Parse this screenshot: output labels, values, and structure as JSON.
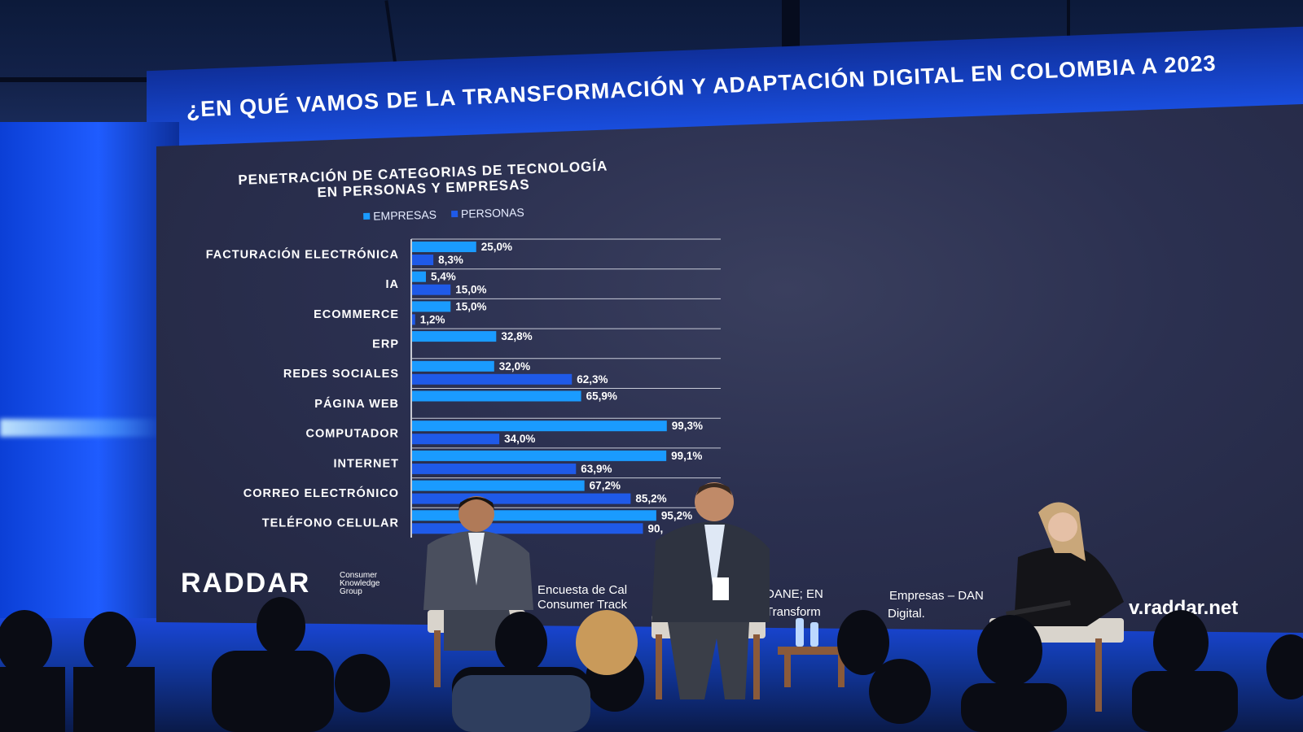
{
  "slide": {
    "title": "¿EN QUÉ VAMOS DE LA TRANSFORMACIÓN Y  ADAPTACIÓN DIGITAL EN COLOMBIA A 2023",
    "subtitle_line1": "PENETRACIÓN DE CATEGORIAS DE TECNOLOGÍA",
    "subtitle_line2": "EN PERSONAS Y EMPRESAS",
    "logo": "RADDAR",
    "logo_sub1": "Consumer",
    "logo_sub2": "Knowledge",
    "logo_sub3": "Group",
    "source_line1a": "Encuesta de Cal",
    "source_line1b": "DANE; EN",
    "source_line1c": "Empresas – DAN",
    "source_line2a": "Consumer Track",
    "source_line2b": "Transform",
    "source_line2c": "Digital.",
    "website": "v.raddar.net"
  },
  "colors": {
    "empresas": "#1a9bff",
    "personas": "#1f5ae8",
    "screen_bg": "#2b3050",
    "stage_blue": "#1f5cff"
  },
  "chart_data": {
    "type": "bar",
    "orientation": "horizontal",
    "categories": [
      "FACTURACIÓN ELECTRÓNICA",
      "IA",
      "ECOMMERCE",
      "ERP",
      "REDES SOCIALES",
      "PÁGINA WEB",
      "COMPUTADOR",
      "INTERNET",
      "CORREO ELECTRÓNICO",
      "TELÉFONO CELULAR"
    ],
    "series": [
      {
        "name": "EMPRESAS",
        "values": [
          25.0,
          5.4,
          15.0,
          32.8,
          32.0,
          65.9,
          99.3,
          99.1,
          67.2,
          95.2
        ]
      },
      {
        "name": "PERSONAS",
        "values": [
          8.3,
          15.0,
          1.2,
          null,
          62.3,
          null,
          34.0,
          63.9,
          85.2,
          90.0
        ]
      }
    ],
    "value_labels": {
      "EMPRESAS": [
        "25,0%",
        "5,4%",
        "15,0%",
        "32,8%",
        "32,0%",
        "65,9%",
        "99,3%",
        "99,1%",
        "67,2%",
        "95,2%"
      ],
      "PERSONAS": [
        "8,3%",
        "15,0%",
        "1,2%",
        "",
        "62,3%",
        "",
        "34,0%",
        "63,9%",
        "85,2%",
        "90,"
      ]
    },
    "title": "PENETRACIÓN DE CATEGORIAS DE TECNOLOGÍA EN PERSONAS Y EMPRESAS",
    "legend": "top",
    "xlim": [
      0,
      100
    ],
    "grid": true
  }
}
